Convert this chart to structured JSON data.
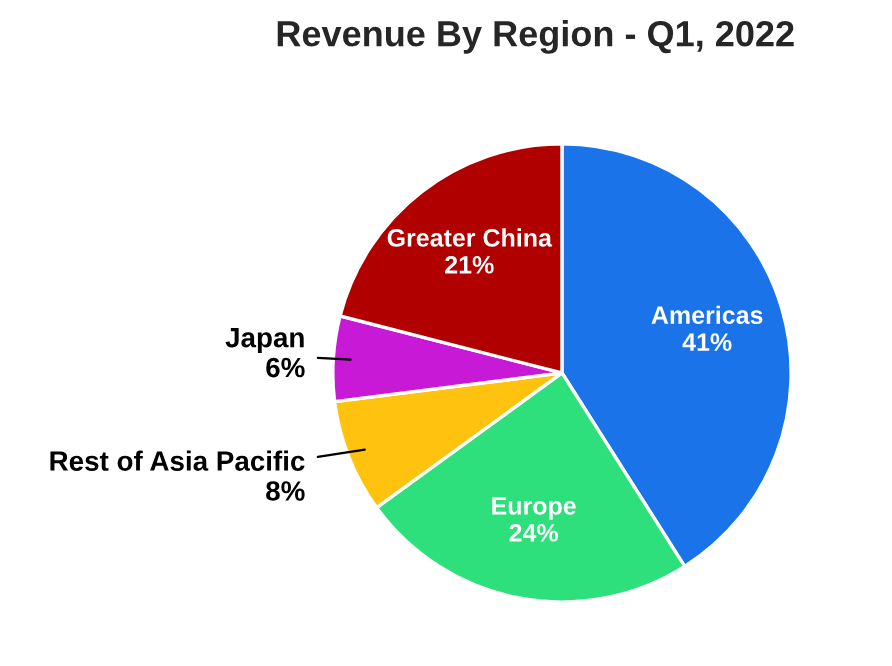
{
  "chart_data": {
    "type": "pie",
    "title": "Revenue By Region - Q1, 2022",
    "categories": [
      "Americas",
      "Europe",
      "Rest of Asia Pacific",
      "Japan",
      "Greater China"
    ],
    "values": [
      41,
      24,
      8,
      6,
      21
    ],
    "colors": [
      "#1a73e8",
      "#2ee07c",
      "#ffc20e",
      "#c81ad6",
      "#b00000"
    ],
    "value_labels": [
      "41%",
      "24%",
      "8%",
      "6%",
      "21%"
    ]
  }
}
